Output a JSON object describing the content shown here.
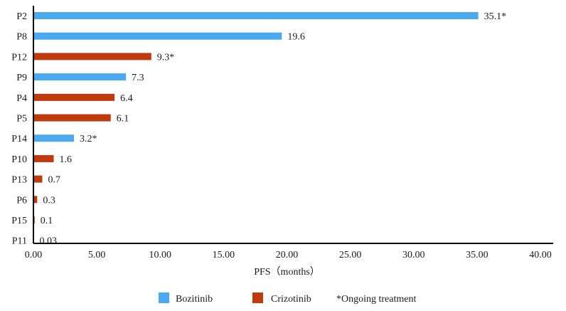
{
  "chart_data": {
    "type": "bar",
    "orientation": "horizontal",
    "categories": [
      "P2",
      "P8",
      "P12",
      "P9",
      "P4",
      "P5",
      "P14",
      "P10",
      "P13",
      "P6",
      "P15",
      "P11"
    ],
    "values": [
      35.1,
      19.6,
      9.3,
      7.3,
      6.4,
      6.1,
      3.2,
      1.6,
      0.7,
      0.3,
      0.1,
      0.03
    ],
    "value_labels": [
      "35.1*",
      "19.6",
      "9.3*",
      "7.3",
      "6.4",
      "6.1",
      "3.2*",
      "1.6",
      "0.7",
      "0.3",
      "0.1",
      "0.03"
    ],
    "groups": [
      "Bozitinib",
      "Bozitinib",
      "Crizotinib",
      "Bozitinib",
      "Crizotinib",
      "Crizotinib",
      "Bozitinib",
      "Crizotinib",
      "Crizotinib",
      "Crizotinib",
      "Crizotinib",
      "Crizotinib"
    ],
    "series": [
      {
        "name": "Bozitinib",
        "color": "#4aaaf0"
      },
      {
        "name": "Crizotinib",
        "color": "#bf3a0f"
      }
    ],
    "xlabel": "PFS（months）",
    "ylabel": "",
    "xlim": [
      0,
      40
    ],
    "x_ticks": [
      "0.00",
      "5.00",
      "10.00",
      "15.00",
      "20.00",
      "25.00",
      "30.00",
      "35.00",
      "40.00"
    ],
    "grid": false,
    "legend_position": "bottom",
    "legend_note": "*Ongoing treatment"
  }
}
